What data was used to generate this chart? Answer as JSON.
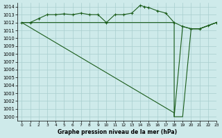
{
  "title": "Graphe pression niveau de la mer (hPa)",
  "bg_color": "#ceeaea",
  "grid_color": "#a8cece",
  "line_color": "#1a5c1a",
  "xlim": [
    -0.5,
    23
  ],
  "ylim": [
    999.5,
    1014.5
  ],
  "xticks": [
    0,
    1,
    2,
    3,
    4,
    5,
    6,
    7,
    8,
    9,
    10,
    11,
    12,
    13,
    14,
    15,
    16,
    17,
    18,
    19,
    20,
    21,
    22,
    23
  ],
  "yticks": [
    1000,
    1001,
    1002,
    1003,
    1004,
    1005,
    1006,
    1007,
    1008,
    1009,
    1010,
    1011,
    1012,
    1013,
    1014
  ],
  "series1_x": [
    0,
    1,
    2,
    3,
    4,
    5,
    6,
    7,
    8,
    9,
    10,
    11,
    12,
    13,
    14,
    14.5,
    15,
    16,
    17,
    18,
    19,
    20,
    21,
    22,
    23
  ],
  "series1_y": [
    1012.0,
    1012.0,
    1012.5,
    1013.0,
    1013.0,
    1013.1,
    1013.0,
    1013.2,
    1013.0,
    1013.0,
    1012.0,
    1013.0,
    1013.0,
    1013.2,
    1014.2,
    1014.0,
    1013.9,
    1013.5,
    1013.2,
    1012.0,
    1011.5,
    1011.2,
    1011.2,
    1011.6,
    1012.0
  ],
  "series2_x": [
    0,
    1,
    2,
    3,
    4,
    5,
    6,
    7,
    8,
    9,
    10,
    11,
    12,
    13,
    14,
    15,
    16,
    17,
    18,
    18,
    19,
    20,
    21,
    22,
    23
  ],
  "series2_y": [
    1012.0,
    1012.0,
    1012.0,
    1012.0,
    1012.0,
    1012.0,
    1012.0,
    1012.0,
    1012.0,
    1012.0,
    1012.0,
    1012.0,
    1012.0,
    1012.0,
    1012.0,
    1012.0,
    1012.0,
    1012.0,
    1012.0,
    1000.0,
    1011.5,
    1011.2,
    1011.2,
    1011.6,
    1012.0
  ],
  "series3_x": [
    0,
    18,
    18,
    19,
    20,
    21,
    22,
    23
  ],
  "series3_y": [
    1012.0,
    1000.5,
    1000.0,
    1000.0,
    1011.2,
    1011.2,
    1011.6,
    1012.0
  ]
}
